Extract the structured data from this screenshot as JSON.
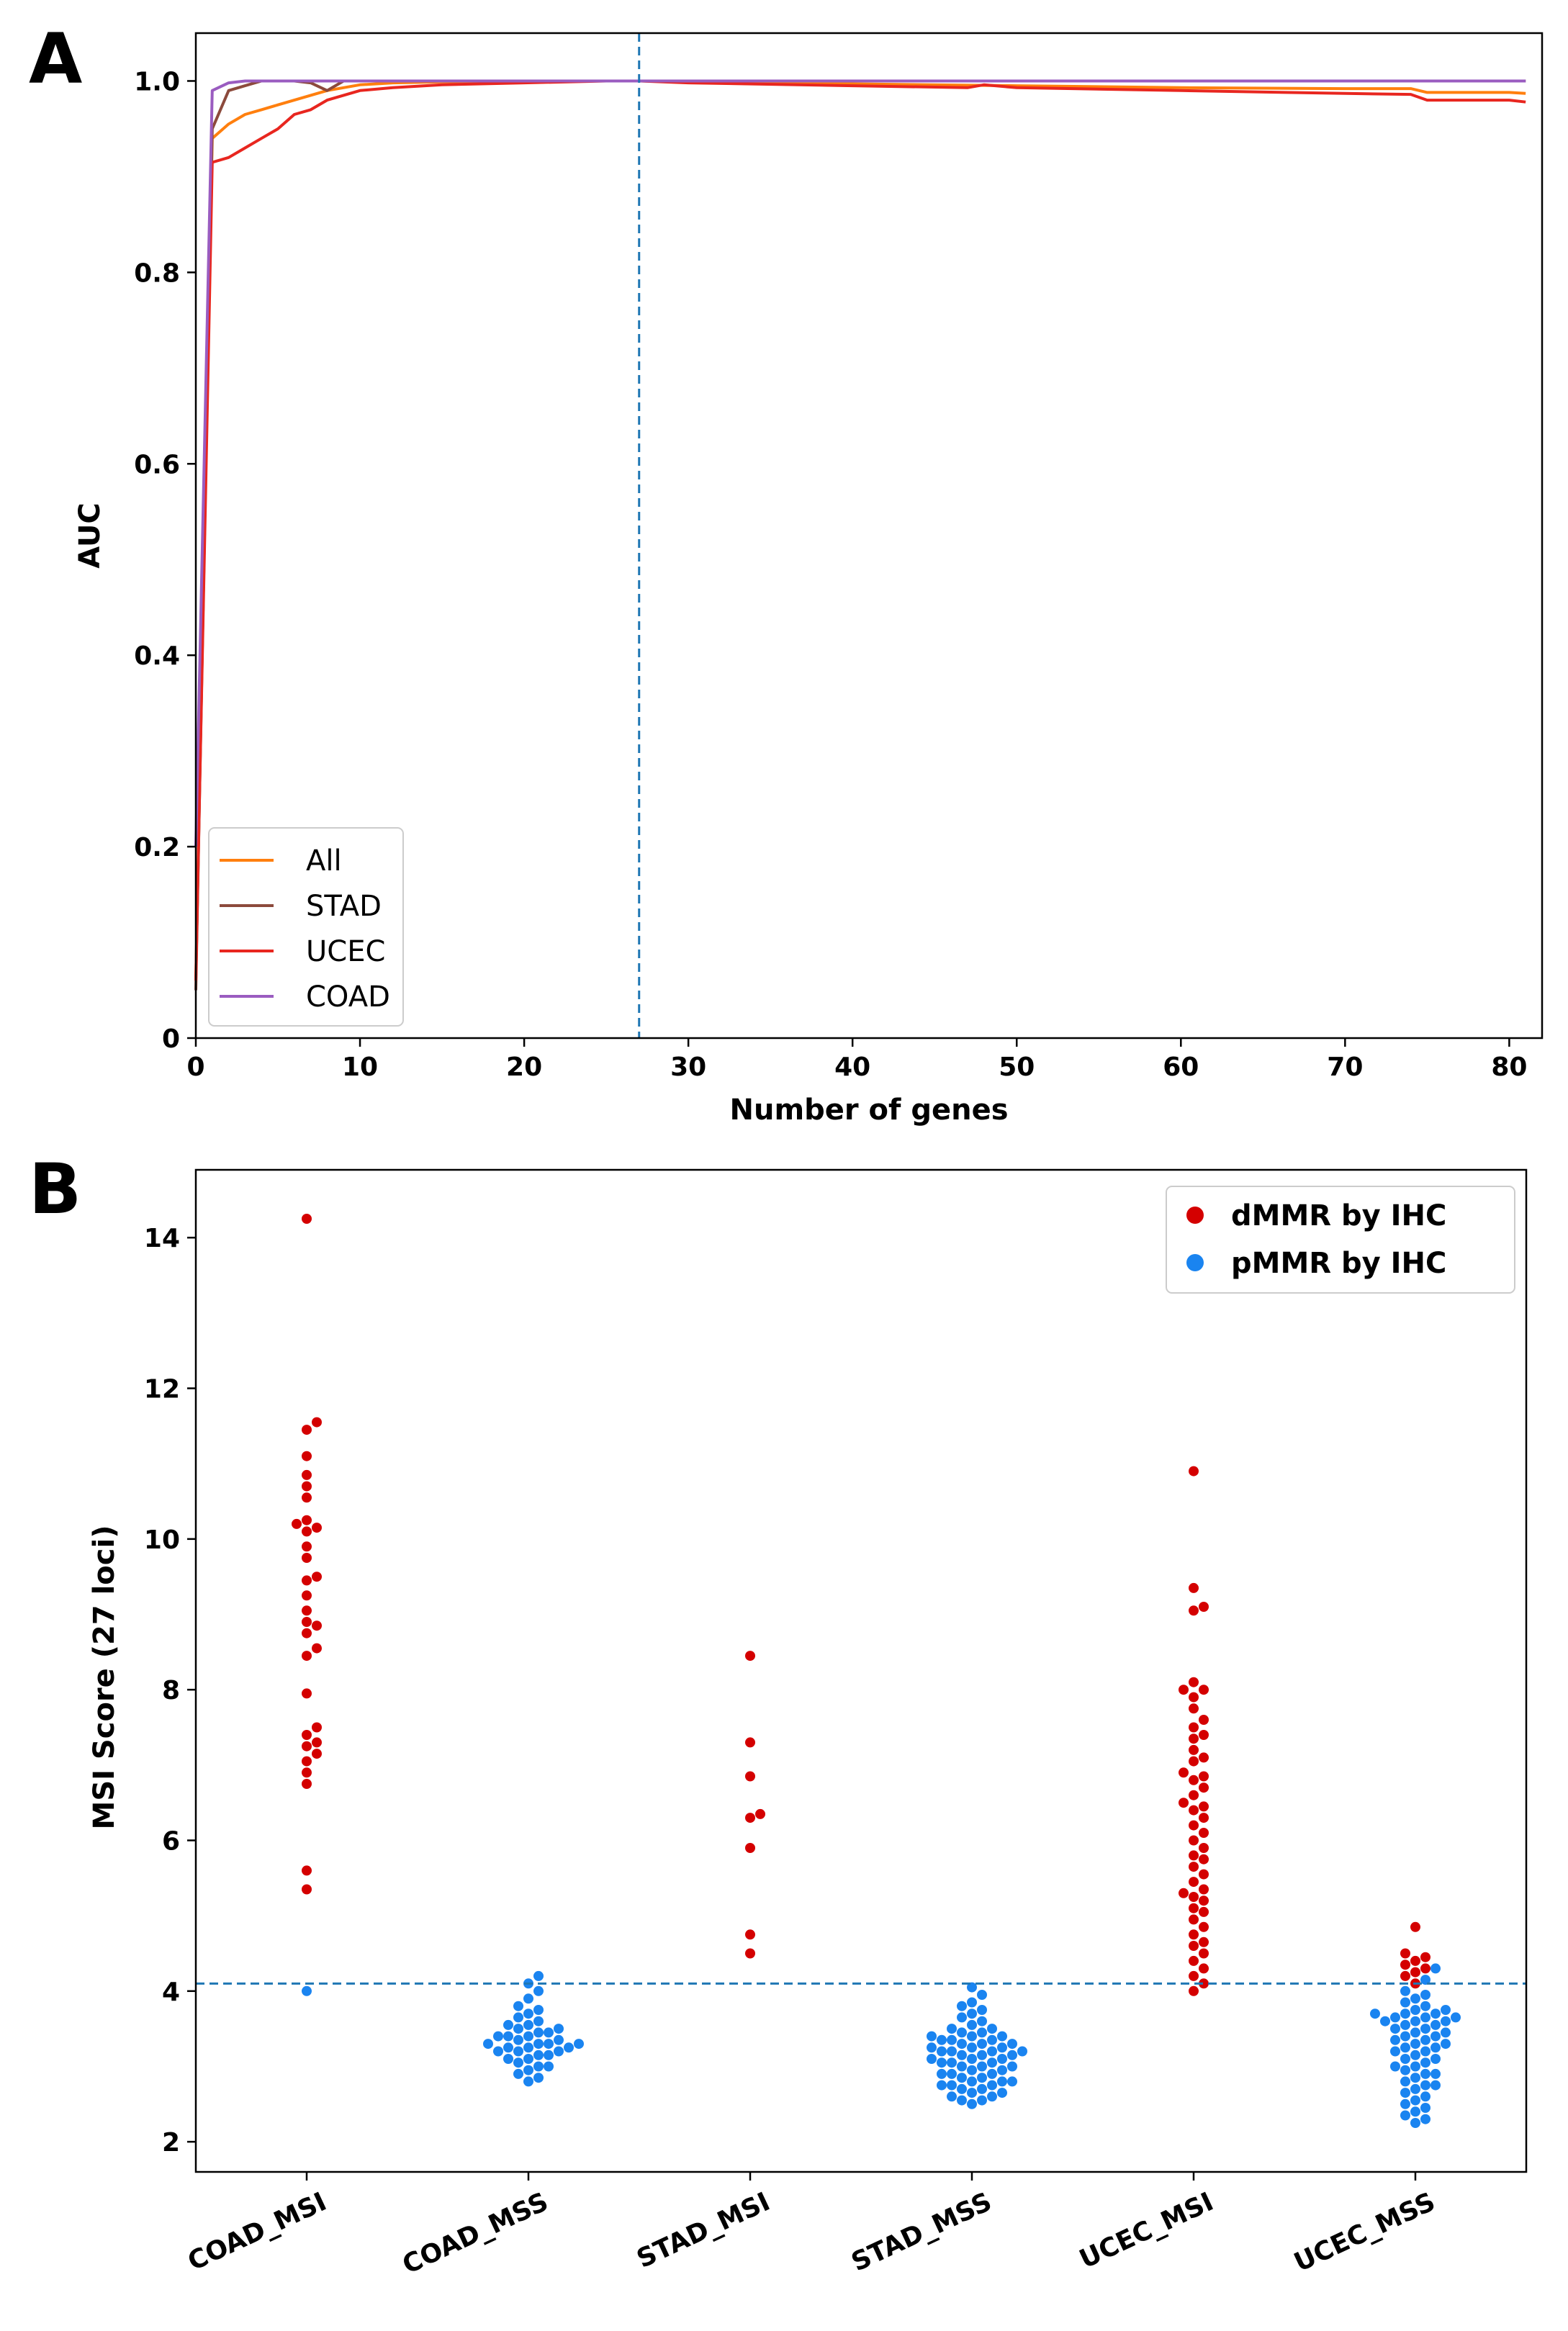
{
  "chart_data": [
    {
      "panel": "A",
      "type": "line",
      "title": "",
      "xlabel": "Number of genes",
      "ylabel": "AUC",
      "xlim": [
        0,
        82
      ],
      "ylim": [
        0,
        1.05
      ],
      "xticks": [
        0,
        10,
        20,
        30,
        40,
        50,
        60,
        70,
        80
      ],
      "yticks": [
        0,
        0.2,
        0.4,
        0.6,
        0.8,
        1.0
      ],
      "ytick_labels": [
        "0",
        "0.2",
        "0.4",
        "0.6",
        "0.8",
        "1.0"
      ],
      "threshold_x": 27,
      "threshold_color": "#1f77b4",
      "legend_position": "lower-left",
      "series": [
        {
          "name": "All",
          "color": "#ff7f0e",
          "x": [
            0,
            1,
            2,
            3,
            4,
            5,
            6,
            7,
            8,
            9,
            10,
            12,
            15,
            20,
            25,
            27,
            30,
            40,
            50,
            60,
            70,
            74,
            75,
            80,
            81
          ],
          "y": [
            0.06,
            0.94,
            0.955,
            0.965,
            0.97,
            0.975,
            0.98,
            0.985,
            0.99,
            0.993,
            0.996,
            0.998,
            0.999,
            1.0,
            1.0,
            1.0,
            0.999,
            0.997,
            0.995,
            0.993,
            0.992,
            0.992,
            0.988,
            0.988,
            0.987
          ]
        },
        {
          "name": "STAD",
          "color": "#8c4a3c",
          "x": [
            0,
            1,
            2,
            3,
            4,
            5,
            6,
            7,
            8,
            9,
            10,
            20,
            27,
            81
          ],
          "y": [
            0.05,
            0.95,
            0.99,
            0.995,
            1.0,
            1.0,
            1.0,
            0.998,
            0.99,
            1.0,
            1.0,
            1.0,
            1.0,
            1.0
          ]
        },
        {
          "name": "UCEC",
          "color": "#e8261f",
          "x": [
            0,
            1,
            2,
            3,
            4,
            5,
            6,
            7,
            8,
            9,
            10,
            12,
            15,
            20,
            25,
            27,
            30,
            40,
            47,
            48,
            50,
            60,
            70,
            74,
            75,
            80,
            81
          ],
          "y": [
            0.06,
            0.915,
            0.92,
            0.93,
            0.94,
            0.95,
            0.965,
            0.97,
            0.98,
            0.985,
            0.99,
            0.993,
            0.996,
            0.998,
            1.0,
            1.0,
            0.998,
            0.995,
            0.993,
            0.996,
            0.993,
            0.99,
            0.987,
            0.986,
            0.98,
            0.98,
            0.978
          ]
        },
        {
          "name": "COAD",
          "color": "#9a5cc0",
          "x": [
            0,
            1,
            2,
            3,
            5,
            10,
            20,
            27,
            81
          ],
          "y": [
            0.2,
            0.99,
            0.998,
            1.0,
            1.0,
            1.0,
            1.0,
            1.0,
            1.0
          ]
        }
      ]
    },
    {
      "panel": "B",
      "type": "scatter",
      "subtype": "swarm",
      "title": "",
      "xlabel": "",
      "ylabel": "MSI Score (27 loci)",
      "ylim": [
        1.6,
        14.9
      ],
      "yticks": [
        2,
        4,
        6,
        8,
        10,
        12,
        14
      ],
      "categories": [
        "COAD_MSI",
        "COAD_MSS",
        "STAD_MSI",
        "STAD_MSS",
        "UCEC_MSI",
        "UCEC_MSS"
      ],
      "threshold_y": 4.1,
      "threshold_color": "#1f77b4",
      "legend_position": "top-right",
      "series": [
        {
          "name": "dMMR by IHC",
          "color": "#d40000",
          "points": {
            "COAD_MSI": [
              14.25,
              11.55,
              11.45,
              11.1,
              10.85,
              10.7,
              10.55,
              10.25,
              10.2,
              10.15,
              10.1,
              9.9,
              9.75,
              9.5,
              9.45,
              9.25,
              9.05,
              8.9,
              8.85,
              8.75,
              8.55,
              8.45,
              7.95,
              7.5,
              7.4,
              7.3,
              7.25,
              7.15,
              7.05,
              6.9,
              6.75,
              5.6,
              5.35
            ],
            "COAD_MSS": [],
            "STAD_MSI": [
              8.45,
              7.3,
              6.85,
              6.35,
              6.3,
              5.9,
              4.75,
              4.5
            ],
            "STAD_MSS": [],
            "UCEC_MSI": [
              10.9,
              9.35,
              9.1,
              9.05,
              8.1,
              8.0,
              8.0,
              7.9,
              7.75,
              7.6,
              7.5,
              7.4,
              7.35,
              7.2,
              7.1,
              7.05,
              6.9,
              6.85,
              6.8,
              6.7,
              6.6,
              6.5,
              6.45,
              6.4,
              6.3,
              6.2,
              6.1,
              6.0,
              5.9,
              5.8,
              5.75,
              5.65,
              5.55,
              5.45,
              5.35,
              5.3,
              5.25,
              5.2,
              5.1,
              5.05,
              4.95,
              4.85,
              4.75,
              4.65,
              4.6,
              4.5,
              4.4,
              4.3,
              4.2,
              4.1,
              4.0
            ],
            "UCEC_MSS": [
              4.85,
              4.5,
              4.45,
              4.4,
              4.35,
              4.3,
              4.25,
              4.2,
              4.1
            ]
          }
        },
        {
          "name": "pMMR by IHC",
          "color": "#1a84f0",
          "points": {
            "COAD_MSI": [
              4.0
            ],
            "COAD_MSS": [
              4.2,
              4.1,
              4.0,
              3.9,
              3.8,
              3.75,
              3.7,
              3.65,
              3.6,
              3.55,
              3.55,
              3.5,
              3.5,
              3.45,
              3.45,
              3.4,
              3.4,
              3.4,
              3.35,
              3.35,
              3.3,
              3.3,
              3.3,
              3.3,
              3.25,
              3.25,
              3.25,
              3.2,
              3.2,
              3.2,
              3.15,
              3.15,
              3.1,
              3.1,
              3.05,
              3.0,
              3.0,
              2.95,
              2.9,
              2.85,
              2.8
            ],
            "STAD_MSI": [],
            "STAD_MSS": [
              4.05,
              3.95,
              3.85,
              3.8,
              3.75,
              3.7,
              3.65,
              3.6,
              3.55,
              3.5,
              3.5,
              3.45,
              3.45,
              3.4,
              3.4,
              3.4,
              3.35,
              3.35,
              3.35,
              3.3,
              3.3,
              3.3,
              3.25,
              3.25,
              3.25,
              3.2,
              3.2,
              3.2,
              3.2,
              3.15,
              3.15,
              3.15,
              3.1,
              3.1,
              3.1,
              3.05,
              3.05,
              3.05,
              3.0,
              3.0,
              3.0,
              2.95,
              2.95,
              2.9,
              2.9,
              2.9,
              2.85,
              2.85,
              2.8,
              2.8,
              2.8,
              2.75,
              2.75,
              2.75,
              2.7,
              2.7,
              2.65,
              2.65,
              2.6,
              2.6,
              2.55,
              2.55,
              2.5
            ],
            "STAD_MSI_": [],
            "UCEC_MSI": [],
            "UCEC_MSS": [
              4.3,
              4.15,
              4.0,
              3.95,
              3.9,
              3.85,
              3.8,
              3.75,
              3.75,
              3.7,
              3.7,
              3.7,
              3.65,
              3.65,
              3.65,
              3.6,
              3.6,
              3.6,
              3.55,
              3.55,
              3.5,
              3.5,
              3.45,
              3.45,
              3.4,
              3.4,
              3.35,
              3.35,
              3.3,
              3.3,
              3.25,
              3.25,
              3.2,
              3.2,
              3.15,
              3.1,
              3.1,
              3.05,
              3.0,
              3.0,
              2.95,
              2.9,
              2.9,
              2.85,
              2.8,
              2.75,
              2.75,
              2.7,
              2.65,
              2.6,
              2.55,
              2.5,
              2.45,
              2.4,
              2.35,
              2.3,
              2.25
            ]
          }
        }
      ]
    }
  ],
  "panels": {
    "a_letter": "A",
    "b_letter": "B"
  }
}
